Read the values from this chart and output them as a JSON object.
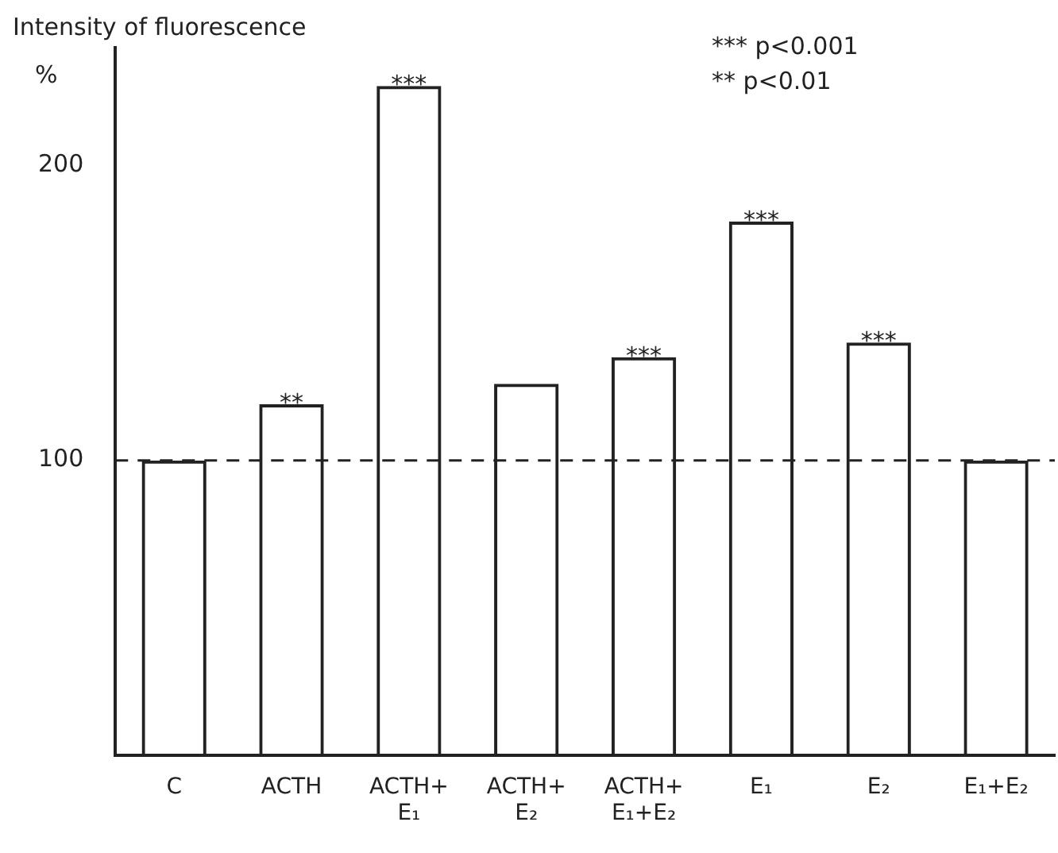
{
  "chart_data": {
    "type": "bar",
    "ylabel": "Intensity of fluorescence",
    "categories": [
      "C",
      "ACTH",
      "ACTH+ E₁",
      "ACTH+ E₂",
      "ACTH+ E₁+E₂",
      "E₁",
      "E₂",
      "E₁+E₂"
    ],
    "values": [
      100,
      119,
      227,
      126,
      135,
      181,
      140,
      100
    ],
    "color": "#222222",
    "ylim": [
      0,
      240
    ],
    "yticks": [
      100,
      200
    ],
    "grid": false,
    "legend": false,
    "ref_lines": [
      {
        "axis": "y",
        "value": 100,
        "color": "#222222",
        "line_style": "dashed"
      }
    ],
    "annotations": [
      "%",
      "*** p<0.001",
      "** p<0.01",
      {
        "text": "**",
        "x": "ACTH",
        "y": 119
      },
      {
        "text": "***",
        "x": "ACTH+ E₁",
        "y": 227
      },
      {
        "text": "***",
        "x": "ACTH+ E₁+E₂",
        "y": 135
      },
      {
        "text": "***",
        "x": "E₁",
        "y": 181
      },
      {
        "text": "***",
        "x": "E₂",
        "y": 140
      }
    ]
  }
}
